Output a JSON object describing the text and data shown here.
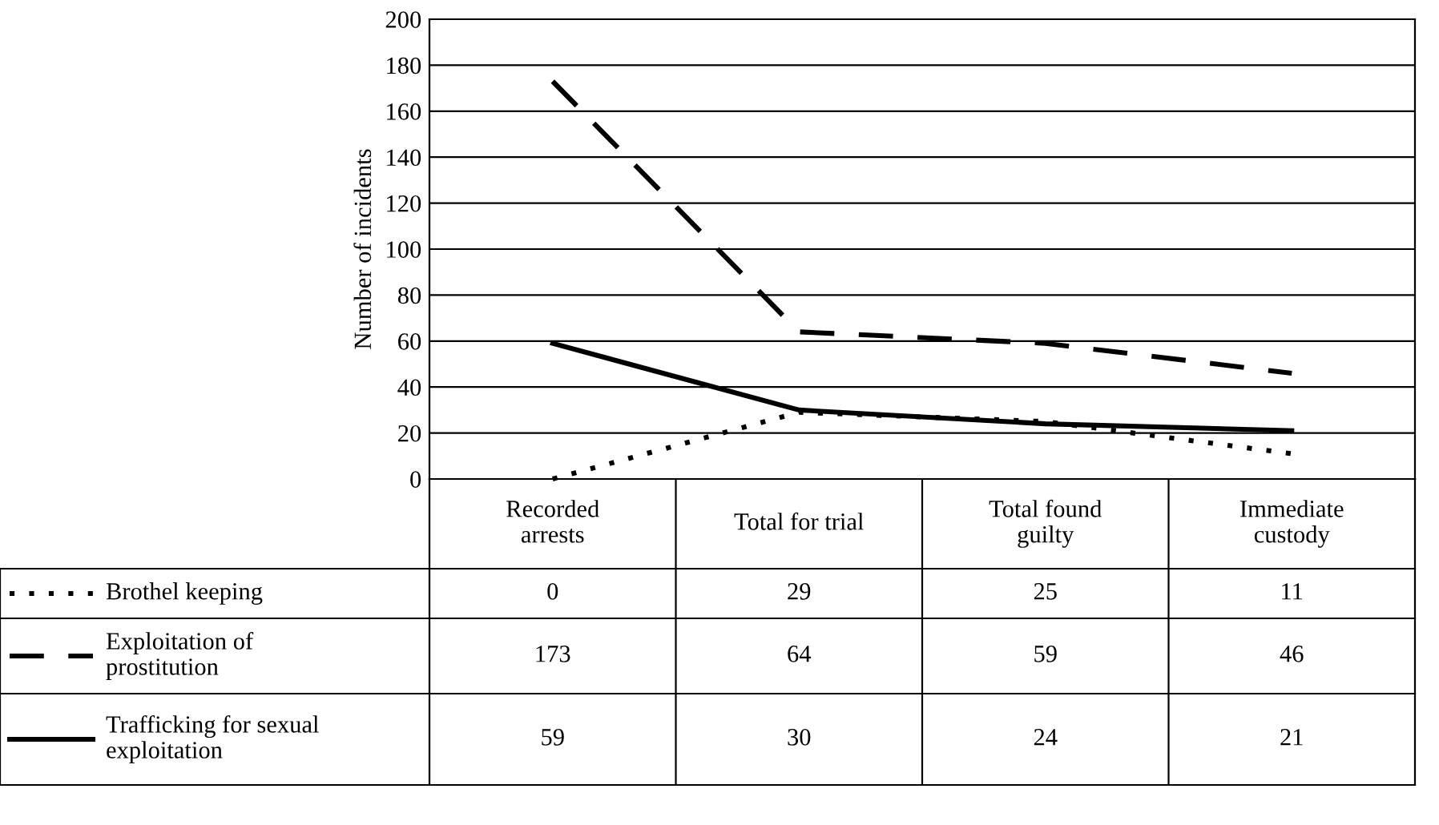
{
  "chart_data": {
    "type": "line",
    "ylabel": "Number of incidents",
    "categories": [
      "Recorded\narrests",
      "Total for trial",
      "Total found\nguilty",
      "Immediate\ncustody"
    ],
    "series": [
      {
        "name": "Brothel keeping",
        "color": "#000000",
        "line_style": "dotted",
        "values": [
          0,
          29,
          25,
          11
        ]
      },
      {
        "name": "Exploitation of\nprostitution",
        "color": "#000000",
        "line_style": "dashed",
        "values": [
          173,
          64,
          59,
          46
        ]
      },
      {
        "name": "Trafficking for sexual\nexploitation",
        "color": "#000000",
        "line_style": "solid",
        "values": [
          59,
          30,
          24,
          21
        ]
      }
    ],
    "ylim": [
      0,
      200
    ],
    "yticks": [
      0,
      20,
      40,
      60,
      80,
      100,
      120,
      140,
      160,
      180,
      200
    ],
    "grid": "y",
    "legend": "bottom left",
    "data_labels": true,
    "marker": "none"
  }
}
